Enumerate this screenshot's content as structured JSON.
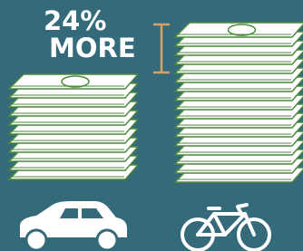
{
  "annotation": {
    "line1": "24%",
    "line2": "MORE"
  }
}
